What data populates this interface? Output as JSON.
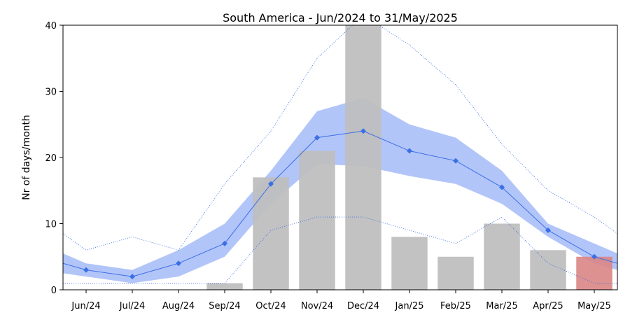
{
  "chart_data": {
    "type": "bar",
    "title": "South America - Jun/2024 to 31/May/2025",
    "xlabel": "",
    "ylabel": "Nr of days/month",
    "ylim": [
      0,
      40
    ],
    "yticks": [
      0,
      10,
      20,
      30,
      40
    ],
    "grid": false,
    "categories": [
      "Jun/24",
      "Jul/24",
      "Aug/24",
      "Sep/24",
      "Oct/24",
      "Nov/24",
      "Dec/24",
      "Jan/25",
      "Feb/25",
      "Mar/25",
      "Apr/25",
      "May/25"
    ],
    "bars": {
      "values": [
        0,
        0,
        0,
        1,
        17,
        21,
        40,
        8,
        5,
        10,
        6,
        5
      ],
      "color": "#bfbfbf",
      "highlight_last_color": "#d98585"
    },
    "mean": {
      "values": [
        3,
        2,
        4,
        7,
        16,
        23,
        24,
        21,
        19.5,
        15.5,
        9,
        5
      ],
      "edge_left": 4,
      "edge_right": 4,
      "color": "#3b6fe6"
    },
    "band": {
      "upper": [
        4,
        3,
        6,
        10,
        18,
        27,
        29,
        25,
        23,
        18,
        10,
        7
      ],
      "lower": [
        2,
        1,
        2,
        5,
        13,
        19,
        18.7,
        17.2,
        16,
        13,
        8,
        4
      ],
      "edge_upper_left": 5.5,
      "edge_upper_right": 5.5,
      "edge_lower_left": 2.5,
      "edge_lower_right": 3,
      "color": "#7f9ff5"
    },
    "max": {
      "values": [
        6,
        8,
        6,
        16,
        24,
        35,
        41.5,
        37,
        31,
        22,
        15,
        11
      ],
      "edge_left": 8.5,
      "edge_right": 8.5,
      "color": "#3b6fe6"
    },
    "min": {
      "values": [
        1,
        1,
        1,
        1,
        9,
        11,
        11,
        9,
        7,
        11,
        4,
        1
      ],
      "edge_left": 1,
      "edge_right": 1,
      "color": "#3b6fe6"
    }
  }
}
